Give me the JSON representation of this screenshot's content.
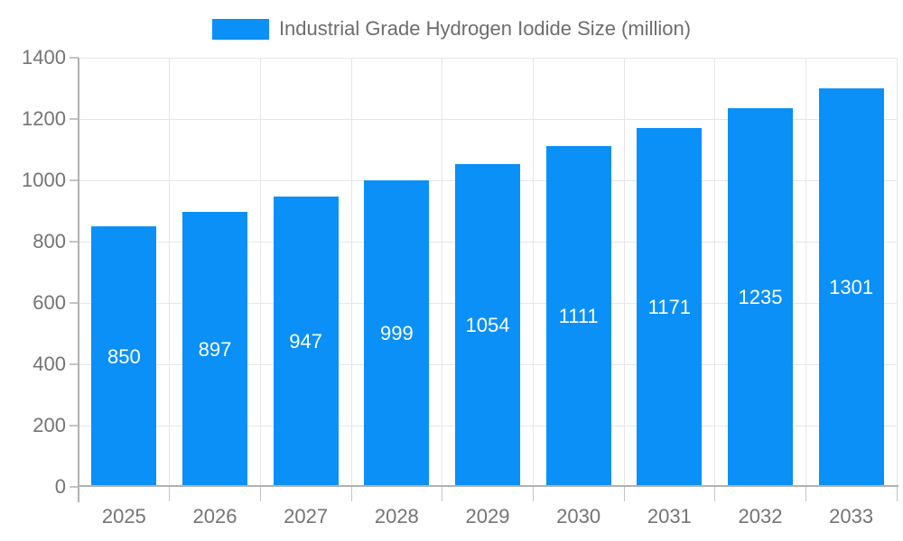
{
  "chart_data": {
    "type": "bar",
    "title": "Industrial Grade Hydrogen Iodide Size (million)",
    "legend_entries": [
      "Industrial Grade Hydrogen Iodide Size (million)"
    ],
    "legend_position": "top",
    "categories": [
      "2025",
      "2026",
      "2027",
      "2028",
      "2029",
      "2030",
      "2031",
      "2032",
      "2033"
    ],
    "values": [
      850,
      897,
      947,
      999,
      1054,
      1111,
      1171,
      1235,
      1301
    ],
    "xlabel": "",
    "ylabel": "",
    "ylim": [
      0,
      1400
    ],
    "yticks": [
      0,
      200,
      400,
      600,
      800,
      1000,
      1200,
      1400
    ],
    "grid": true,
    "bar_value_labels_visible": true,
    "colors": {
      "bar": "#0a90f7",
      "bar_label": "#ffffff",
      "axis_text": "#747474",
      "legend_text": "#6d6d6d",
      "gridline": "#e6e6e6",
      "axis_line": "#b1b1b1",
      "tick": "#c4c4c4",
      "background": "#ffffff"
    }
  }
}
